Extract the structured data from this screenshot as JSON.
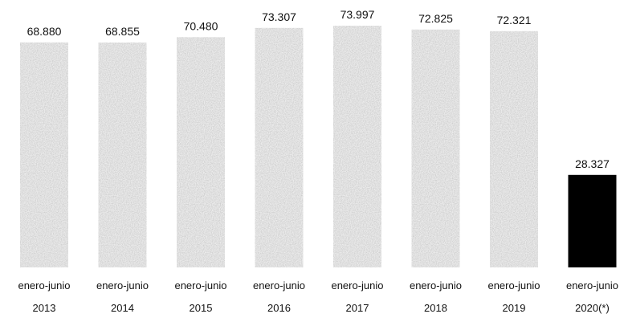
{
  "chart_data": {
    "type": "bar",
    "categories": [
      [
        "enero-junio",
        "2013"
      ],
      [
        "enero-junio",
        "2014"
      ],
      [
        "enero-junio",
        "2015"
      ],
      [
        "enero-junio",
        "2016"
      ],
      [
        "enero-junio",
        "2017"
      ],
      [
        "enero-junio",
        "2018"
      ],
      [
        "enero-junio",
        "2019"
      ],
      [
        "enero-junio",
        "2020(*)"
      ]
    ],
    "values": [
      68880,
      68855,
      70480,
      73307,
      73997,
      72825,
      72321,
      28327
    ],
    "value_labels": [
      "68.880",
      "68.855",
      "70.480",
      "73.307",
      "73.997",
      "72.825",
      "72.321",
      "28.327"
    ],
    "ylim": [
      0,
      80000
    ],
    "grid": false,
    "legend": "none",
    "colors": {
      "bar": "#c8c8c8",
      "highlight": "#000000",
      "text": "#111111"
    },
    "highlight_index": 7
  }
}
